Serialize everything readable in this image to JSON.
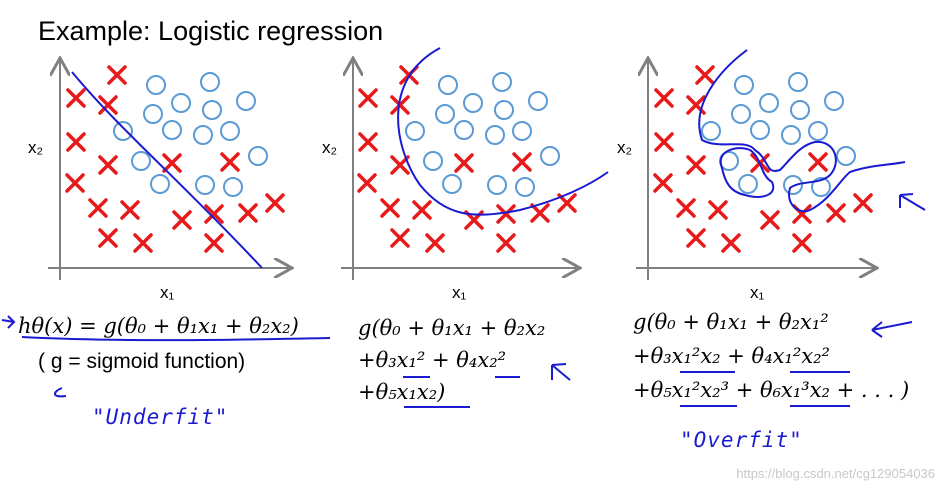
{
  "title": "Example: Logistic regression",
  "axis": {
    "x_label": "x₁",
    "y_label": "x₂"
  },
  "panels": [
    {
      "id": "underfit",
      "formula_lines": [
        "hθ(x) = g(θ₀ + θ₁x₁ + θ₂x₂)"
      ],
      "note": "( g = sigmoid function)",
      "handwritten": "\"Underfit\""
    },
    {
      "id": "justright",
      "formula_lines": [
        "g(θ₀ + θ₁x₁ + θ₂x₂",
        "+θ₃x₁² + θ₄x₂²",
        "+θ₅x₁x₂)"
      ]
    },
    {
      "id": "overfit",
      "formula_lines": [
        "g(θ₀ + θ₁x₁ + θ₂x₁²",
        "+θ₃x₁²x₂ + θ₄x₁²x₂²",
        "+θ₅x₁²x₂³ + θ₆x₁³x₂ + . . . )"
      ],
      "handwritten": "\"Overfit\""
    }
  ],
  "watermark": "https://blog.csdn.net/cg129054036",
  "colors": {
    "cross": "#e8191a",
    "circle": "#5b9bd5",
    "ink": "#1a1ad0",
    "axis": "#808080"
  }
}
